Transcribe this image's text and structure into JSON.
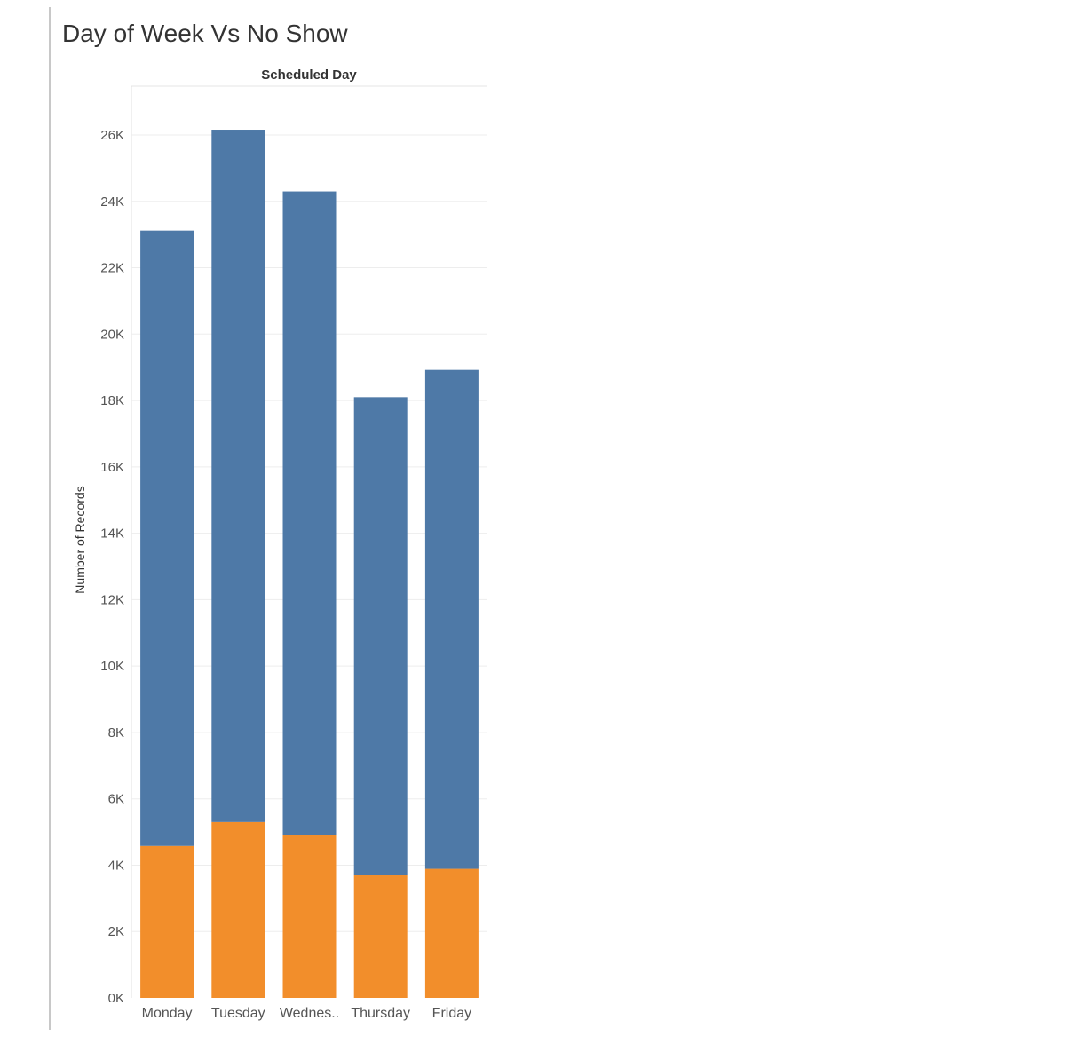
{
  "title": "Day of Week Vs No Show",
  "chart_data": {
    "type": "bar",
    "stacked": true,
    "title": "Day of Week Vs No Show",
    "column_header": "Scheduled Day",
    "xlabel": "",
    "ylabel": "Number of Records",
    "categories": [
      "Monday",
      "Tuesday",
      "Wednes..",
      "Thursday",
      "Friday"
    ],
    "series": [
      {
        "color": "#f28e2b",
        "values": [
          4580,
          5300,
          4900,
          3700,
          3890
        ]
      },
      {
        "color": "#4e79a7",
        "values": [
          18540,
          20860,
          19400,
          14400,
          15030
        ]
      }
    ],
    "totals": [
      23120,
      26160,
      24300,
      18100,
      18920
    ],
    "yticks": [
      "0K",
      "2K",
      "4K",
      "6K",
      "8K",
      "10K",
      "12K",
      "14K",
      "16K",
      "18K",
      "20K",
      "22K",
      "24K",
      "26K"
    ],
    "ylim": [
      0,
      26000
    ],
    "grid": true,
    "legend": "none"
  }
}
